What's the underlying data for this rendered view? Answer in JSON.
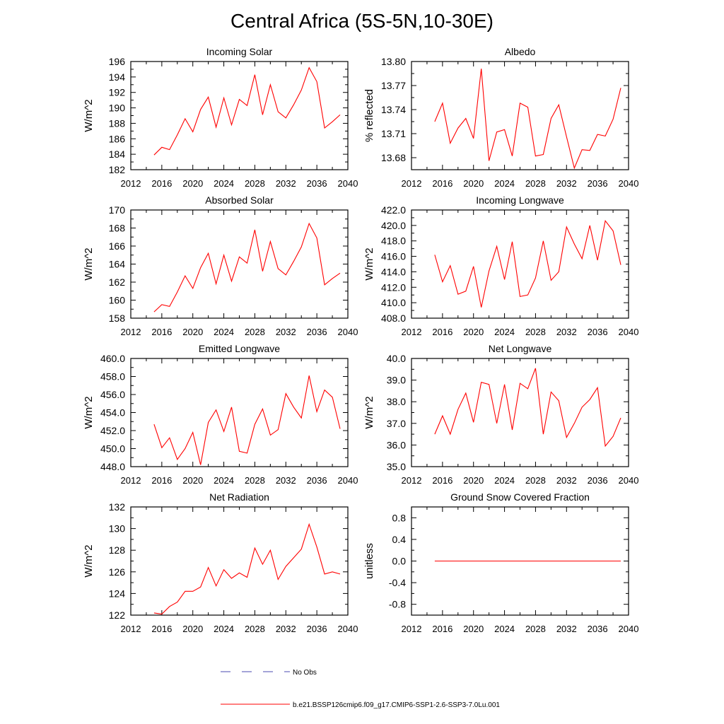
{
  "title": "Central Africa (5S-5N,10-30E)",
  "colors": {
    "model": "#ff0000",
    "obs": "#4a4ab0",
    "axis": "#000000"
  },
  "legend": [
    {
      "label": "No Obs",
      "style": "dashed",
      "color": "#4a4ab0"
    },
    {
      "label": "b.e21.BSSP126cmip6.f09_g17.CMIP6-SSP1-2.6-SSP3-7.0Lu.001",
      "style": "solid",
      "color": "#ff0000"
    }
  ],
  "chart_data": [
    {
      "type": "line",
      "title": "Incoming Solar",
      "ylabel": "W/m^2",
      "xlim": [
        2012,
        2040
      ],
      "xticks": [
        "2012",
        "2016",
        "2020",
        "2024",
        "2028",
        "2032",
        "2036",
        "2040"
      ],
      "ylim": [
        182,
        196
      ],
      "yticks": [
        "182",
        "184",
        "186",
        "188",
        "190",
        "192",
        "194",
        "196"
      ],
      "x": [
        2015,
        2016,
        2017,
        2018,
        2019,
        2020,
        2021,
        2022,
        2023,
        2024,
        2025,
        2026,
        2027,
        2028,
        2029,
        2030,
        2031,
        2032,
        2033,
        2034,
        2035,
        2036,
        2037,
        2038,
        2039
      ],
      "series": [
        {
          "values": [
            183.9,
            184.9,
            184.6,
            186.5,
            188.6,
            186.9,
            189.8,
            191.4,
            187.5,
            191.3,
            187.8,
            191.1,
            190.3,
            194.3,
            189.1,
            193.0,
            189.5,
            188.7,
            190.4,
            192.3,
            195.2,
            193.4,
            187.4,
            188.2,
            189.1
          ]
        }
      ]
    },
    {
      "type": "line",
      "title": "Albedo",
      "ylabel": "% reflected",
      "xlim": [
        2012,
        2040
      ],
      "xticks": [
        "2012",
        "2016",
        "2020",
        "2024",
        "2028",
        "2032",
        "2036",
        "2040"
      ],
      "ylim": [
        13.665,
        13.8
      ],
      "yticks": [
        "13.68",
        "13.71",
        "13.74",
        "13.77",
        "13.80"
      ],
      "ytick_values": [
        13.68,
        13.71,
        13.74,
        13.77,
        13.8
      ],
      "x": [
        2015,
        2016,
        2017,
        2018,
        2019,
        2020,
        2021,
        2022,
        2023,
        2024,
        2025,
        2026,
        2027,
        2028,
        2029,
        2030,
        2031,
        2032,
        2033,
        2034,
        2035,
        2036,
        2037,
        2038,
        2039
      ],
      "series": [
        {
          "values": [
            13.725,
            13.748,
            13.698,
            13.717,
            13.729,
            13.704,
            13.791,
            13.676,
            13.712,
            13.715,
            13.682,
            13.748,
            13.743,
            13.682,
            13.684,
            13.729,
            13.746,
            13.706,
            13.667,
            13.69,
            13.689,
            13.709,
            13.707,
            13.728,
            13.767
          ]
        }
      ]
    },
    {
      "type": "line",
      "title": "Absorbed Solar",
      "ylabel": "W/m^2",
      "xlim": [
        2012,
        2040
      ],
      "xticks": [
        "2012",
        "2016",
        "2020",
        "2024",
        "2028",
        "2032",
        "2036",
        "2040"
      ],
      "ylim": [
        158,
        170
      ],
      "yticks": [
        "158",
        "160",
        "162",
        "164",
        "166",
        "168",
        "170"
      ],
      "x": [
        2015,
        2016,
        2017,
        2018,
        2019,
        2020,
        2021,
        2022,
        2023,
        2024,
        2025,
        2026,
        2027,
        2028,
        2029,
        2030,
        2031,
        2032,
        2033,
        2034,
        2035,
        2036,
        2037,
        2038,
        2039
      ],
      "series": [
        {
          "values": [
            158.7,
            159.5,
            159.3,
            160.9,
            162.7,
            161.3,
            163.6,
            165.2,
            161.8,
            165.0,
            162.1,
            164.8,
            164.1,
            167.8,
            163.2,
            166.5,
            163.5,
            162.8,
            164.3,
            165.9,
            168.5,
            166.9,
            161.7,
            162.4,
            163.0
          ]
        }
      ]
    },
    {
      "type": "line",
      "title": "Incoming Longwave",
      "ylabel": "W/m^2",
      "xlim": [
        2012,
        2040
      ],
      "xticks": [
        "2012",
        "2016",
        "2020",
        "2024",
        "2028",
        "2032",
        "2036",
        "2040"
      ],
      "ylim": [
        408,
        422
      ],
      "yticks": [
        "408.0",
        "410.0",
        "412.0",
        "414.0",
        "416.0",
        "418.0",
        "420.0",
        "422.0"
      ],
      "x": [
        2015,
        2016,
        2017,
        2018,
        2019,
        2020,
        2021,
        2022,
        2023,
        2024,
        2025,
        2026,
        2027,
        2028,
        2029,
        2030,
        2031,
        2032,
        2033,
        2034,
        2035,
        2036,
        2037,
        2038,
        2039
      ],
      "series": [
        {
          "values": [
            416.2,
            412.7,
            414.8,
            411.1,
            411.5,
            414.7,
            409.4,
            414.1,
            417.3,
            413.0,
            417.9,
            410.8,
            411.0,
            413.2,
            418.0,
            412.9,
            414.0,
            419.8,
            417.6,
            415.7,
            420.0,
            415.5,
            420.6,
            419.3,
            414.9
          ]
        }
      ]
    },
    {
      "type": "line",
      "title": "Emitted Longwave",
      "ylabel": "W/m^2",
      "xlim": [
        2012,
        2040
      ],
      "xticks": [
        "2012",
        "2016",
        "2020",
        "2024",
        "2028",
        "2032",
        "2036",
        "2040"
      ],
      "ylim": [
        448,
        460
      ],
      "yticks": [
        "448.0",
        "450.0",
        "452.0",
        "454.0",
        "456.0",
        "458.0",
        "460.0"
      ],
      "x": [
        2015,
        2016,
        2017,
        2018,
        2019,
        2020,
        2021,
        2022,
        2023,
        2024,
        2025,
        2026,
        2027,
        2028,
        2029,
        2030,
        2031,
        2032,
        2033,
        2034,
        2035,
        2036,
        2037,
        2038,
        2039
      ],
      "series": [
        {
          "values": [
            452.7,
            450.1,
            451.2,
            448.8,
            450.0,
            451.8,
            448.2,
            452.9,
            454.3,
            451.9,
            454.6,
            449.7,
            449.5,
            452.7,
            454.4,
            451.5,
            452.1,
            456.1,
            454.6,
            453.4,
            458.1,
            454.1,
            456.5,
            455.7,
            452.2
          ]
        }
      ]
    },
    {
      "type": "line",
      "title": "Net Longwave",
      "ylabel": "W/m^2",
      "xlim": [
        2012,
        2040
      ],
      "xticks": [
        "2012",
        "2016",
        "2020",
        "2024",
        "2028",
        "2032",
        "2036",
        "2040"
      ],
      "ylim": [
        35,
        40
      ],
      "yticks": [
        "35.0",
        "36.0",
        "37.0",
        "38.0",
        "39.0",
        "40.0"
      ],
      "x": [
        2015,
        2016,
        2017,
        2018,
        2019,
        2020,
        2021,
        2022,
        2023,
        2024,
        2025,
        2026,
        2027,
        2028,
        2029,
        2030,
        2031,
        2032,
        2033,
        2034,
        2035,
        2036,
        2037,
        2038,
        2039
      ],
      "series": [
        {
          "values": [
            36.5,
            37.35,
            36.5,
            37.65,
            38.4,
            37.05,
            38.9,
            38.8,
            37.0,
            38.8,
            36.7,
            38.85,
            38.6,
            39.55,
            36.5,
            38.45,
            38.05,
            36.35,
            37.0,
            37.75,
            38.1,
            38.65,
            35.95,
            36.4,
            37.25
          ]
        }
      ]
    },
    {
      "type": "line",
      "title": "Net Radiation",
      "ylabel": "W/m^2",
      "xlim": [
        2012,
        2040
      ],
      "xticks": [
        "2012",
        "2016",
        "2020",
        "2024",
        "2028",
        "2032",
        "2036",
        "2040"
      ],
      "ylim": [
        122,
        132
      ],
      "yticks": [
        "122",
        "124",
        "126",
        "128",
        "130",
        "132"
      ],
      "x": [
        2015,
        2016,
        2017,
        2018,
        2019,
        2020,
        2021,
        2022,
        2023,
        2024,
        2025,
        2026,
        2027,
        2028,
        2029,
        2030,
        2031,
        2032,
        2033,
        2034,
        2035,
        2036,
        2037,
        2038,
        2039
      ],
      "series": [
        {
          "values": [
            122.2,
            122.1,
            122.8,
            123.2,
            124.2,
            124.2,
            124.6,
            126.4,
            124.7,
            126.2,
            125.4,
            125.9,
            125.5,
            128.2,
            126.7,
            128.0,
            125.3,
            126.5,
            127.3,
            128.1,
            130.4,
            128.3,
            125.8,
            126.0,
            125.8
          ]
        }
      ]
    },
    {
      "type": "line",
      "title": "Ground Snow Covered Fraction",
      "ylabel": "unitless",
      "xlim": [
        2012,
        2040
      ],
      "xticks": [
        "2012",
        "2016",
        "2020",
        "2024",
        "2028",
        "2032",
        "2036",
        "2040"
      ],
      "ylim": [
        -1.0,
        1.0
      ],
      "yticks": [
        "-0.8",
        "-0.4",
        "0.0",
        "0.4",
        "0.8"
      ],
      "ytick_values": [
        -0.8,
        -0.4,
        0.0,
        0.4,
        0.8
      ],
      "x": [
        2015,
        2016,
        2017,
        2018,
        2019,
        2020,
        2021,
        2022,
        2023,
        2024,
        2025,
        2026,
        2027,
        2028,
        2029,
        2030,
        2031,
        2032,
        2033,
        2034,
        2035,
        2036,
        2037,
        2038,
        2039
      ],
      "series": [
        {
          "values": [
            0,
            0,
            0,
            0,
            0,
            0,
            0,
            0,
            0,
            0,
            0,
            0,
            0,
            0,
            0,
            0,
            0,
            0,
            0,
            0,
            0,
            0,
            0,
            0,
            0
          ]
        }
      ]
    }
  ]
}
